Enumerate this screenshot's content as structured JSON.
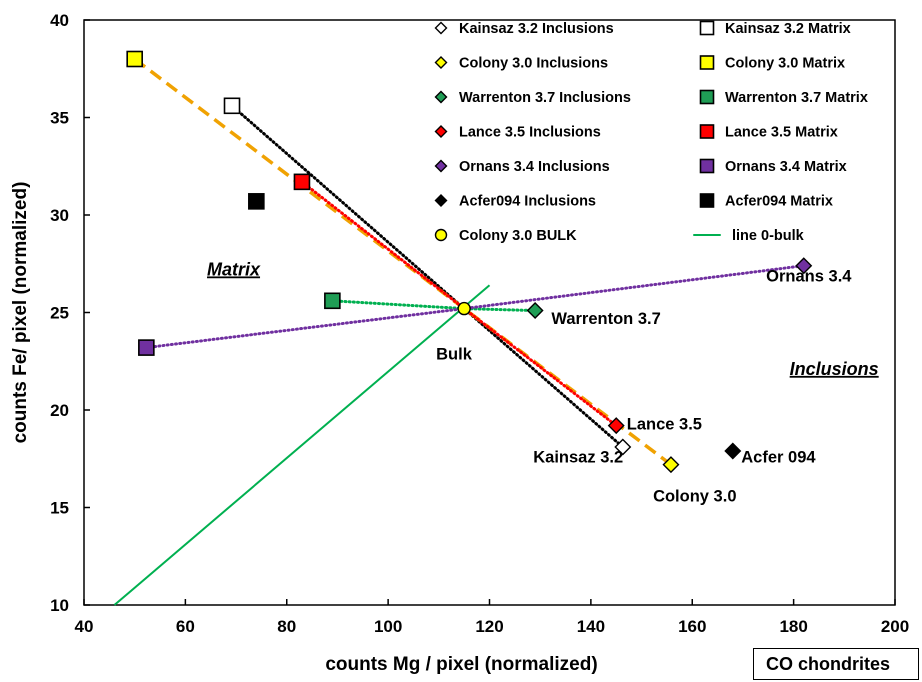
{
  "chart_data": {
    "type": "scatter",
    "xlabel": "counts Mg / pixel (normalized)",
    "ylabel": "counts Fe/ pixel (normalized)",
    "xlim": [
      40,
      200
    ],
    "ylim": [
      10,
      40
    ],
    "x_ticks": [
      40,
      60,
      80,
      100,
      120,
      140,
      160,
      180,
      200
    ],
    "y_ticks": [
      10,
      15,
      20,
      25,
      30,
      35,
      40
    ],
    "grid": false,
    "legend_position": "top-right",
    "corner_label": "CO chondrites",
    "series": [
      {
        "name": "Kainsaz 3.2  Inclusions",
        "marker": "diamond",
        "color": "#ffffff",
        "points": [
          [
            146.3,
            18.1
          ]
        ]
      },
      {
        "name": "Kainsaz 3.2 Matrix",
        "marker": "square",
        "color": "#ffffff",
        "points": [
          [
            69.2,
            35.6
          ]
        ]
      },
      {
        "name": "Colony 3.0  Inclusions",
        "marker": "diamond",
        "color": "#ffff00",
        "points": [
          [
            155.8,
            17.2
          ]
        ]
      },
      {
        "name": "Colony 3.0 Matrix",
        "marker": "square",
        "color": "#ffff00",
        "points": [
          [
            50,
            38
          ]
        ]
      },
      {
        "name": "Warrenton 3.7  Inclusions",
        "marker": "diamond",
        "color": "#1f9d55",
        "points": [
          [
            129,
            25.1
          ]
        ]
      },
      {
        "name": "Warrenton 3.7 Matrix",
        "marker": "square",
        "color": "#1f9d55",
        "points": [
          [
            89,
            25.6
          ]
        ]
      },
      {
        "name": "Lance 3.5  Inclusions",
        "marker": "diamond",
        "color": "#ff0000",
        "points": [
          [
            145,
            19.2
          ]
        ]
      },
      {
        "name": "Lance 3.5 Matrix",
        "marker": "square",
        "color": "#ff0000",
        "points": [
          [
            83,
            31.7
          ]
        ]
      },
      {
        "name": "Ornans 3.4  Inclusions",
        "marker": "diamond",
        "color": "#7030a0",
        "points": [
          [
            182,
            27.4
          ]
        ]
      },
      {
        "name": "Ornans 3.4 Matrix",
        "marker": "square",
        "color": "#7030a0",
        "points": [
          [
            52.3,
            23.2
          ]
        ]
      },
      {
        "name": "Acfer094  Inclusions",
        "marker": "diamond",
        "color": "#000000",
        "points": [
          [
            168,
            17.9
          ]
        ]
      },
      {
        "name": "Acfer094 Matrix",
        "marker": "square",
        "color": "#000000",
        "points": [
          [
            74,
            30.7
          ]
        ]
      },
      {
        "name": "Colony 3.0 BULK",
        "marker": "circle",
        "color": "#ffff00",
        "points": [
          [
            115,
            25.2
          ]
        ]
      },
      {
        "name": "line 0-bulk",
        "marker": "line",
        "color": "#00b050",
        "points": [
          [
            46,
            10
          ],
          [
            120,
            26.4
          ]
        ]
      }
    ],
    "tie_lines": [
      {
        "color": "#000000",
        "style": "dotted",
        "points": [
          [
            69.2,
            35.6
          ],
          [
            115,
            25.2
          ],
          [
            146.3,
            18.1
          ]
        ]
      },
      {
        "color": "#f0a202",
        "style": "dashed",
        "points": [
          [
            50,
            38
          ],
          [
            115,
            25.2
          ],
          [
            155.8,
            17.2
          ]
        ]
      },
      {
        "color": "#00b050",
        "style": "dotted",
        "points": [
          [
            89,
            25.6
          ],
          [
            115,
            25.2
          ],
          [
            129,
            25.1
          ]
        ]
      },
      {
        "color": "#ff0000",
        "style": "dotted",
        "points": [
          [
            83,
            31.7
          ],
          [
            115,
            25.2
          ],
          [
            145,
            19.2
          ]
        ]
      },
      {
        "color": "#7030a0",
        "style": "dotted",
        "points": [
          [
            52.3,
            23.2
          ],
          [
            115,
            25.2
          ],
          [
            182,
            27.4
          ]
        ]
      }
    ],
    "annotations": [
      {
        "text": "Ornans 3.4",
        "x": 183,
        "y": 26.6,
        "anchor": "middle",
        "kind": "label"
      },
      {
        "text": "Warrenton 3.7",
        "x": 143,
        "y": 24.4,
        "anchor": "middle",
        "kind": "label"
      },
      {
        "text": "Bulk",
        "x": 113,
        "y": 22.6,
        "anchor": "middle",
        "kind": "label"
      },
      {
        "text": "Lance 3.5",
        "x": 154.5,
        "y": 19.0,
        "anchor": "middle",
        "kind": "label"
      },
      {
        "text": "Kainsaz 3.2",
        "x": 137.5,
        "y": 17.3,
        "anchor": "middle",
        "kind": "label"
      },
      {
        "text": "Acfer 094",
        "x": 177,
        "y": 17.3,
        "anchor": "middle",
        "kind": "label"
      },
      {
        "text": "Colony 3.0",
        "x": 160.5,
        "y": 15.3,
        "anchor": "middle",
        "kind": "label"
      },
      {
        "text": "Matrix",
        "x": 69.5,
        "y": 26.9,
        "anchor": "middle",
        "kind": "region"
      },
      {
        "text": "Inclusions",
        "x": 188,
        "y": 21.8,
        "anchor": "middle",
        "kind": "region"
      }
    ]
  }
}
